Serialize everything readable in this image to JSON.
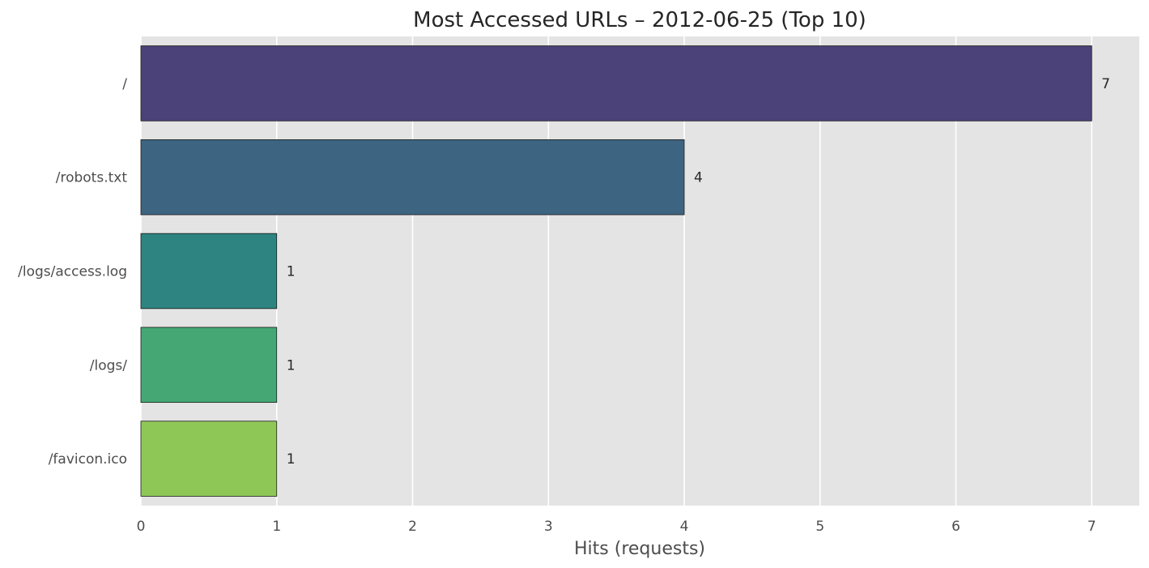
{
  "chart_data": {
    "type": "bar",
    "orientation": "horizontal",
    "title": "Most Accessed URLs – 2012-06-25 (Top 10)",
    "xlabel": "Hits (requests)",
    "ylabel": "",
    "categories": [
      "/",
      "/robots.txt",
      "/logs/access.log",
      "/logs/",
      "/favicon.ico"
    ],
    "values": [
      7,
      4,
      1,
      1,
      1
    ],
    "value_labels": [
      "7",
      "4",
      "1",
      "1",
      "1"
    ],
    "xlim": [
      0,
      7.35
    ],
    "xticks": [
      0,
      1,
      2,
      3,
      4,
      5,
      6,
      7
    ],
    "xtick_labels": [
      "0",
      "1",
      "2",
      "3",
      "4",
      "5",
      "6",
      "7"
    ],
    "grid": true,
    "colors": [
      "#4a4278",
      "#3d6480",
      "#2e8480",
      "#45a874",
      "#8fc757"
    ],
    "background": "#e4e4e4"
  }
}
